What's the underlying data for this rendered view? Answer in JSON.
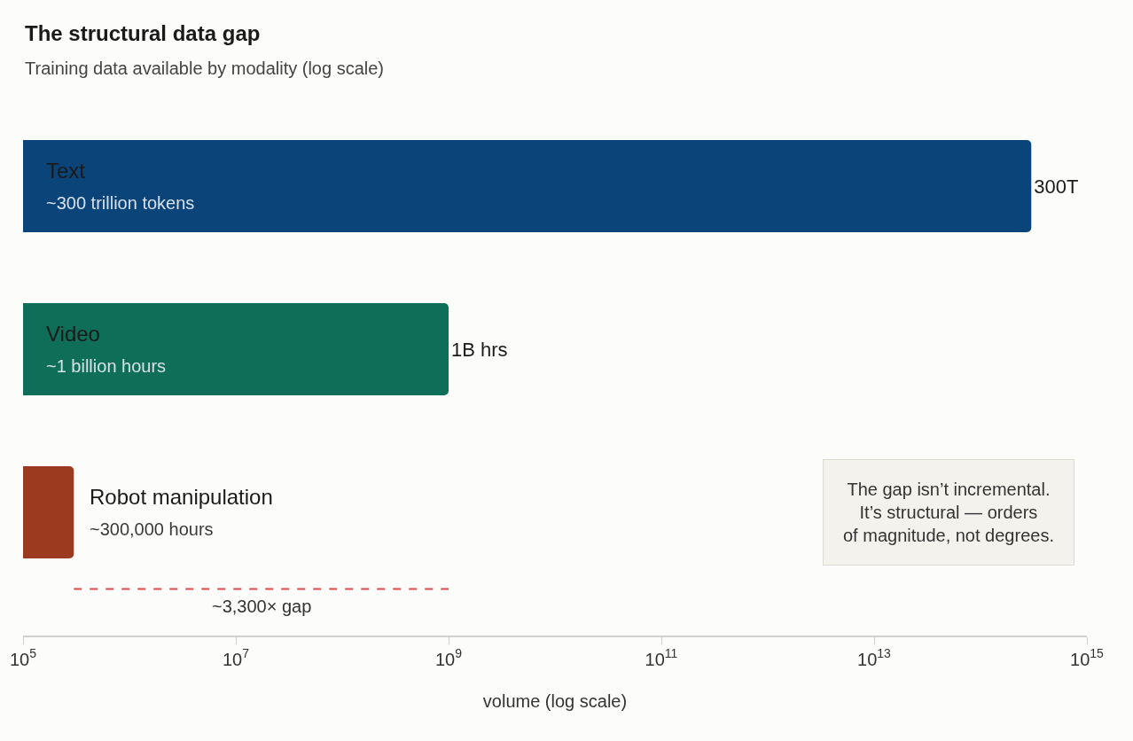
{
  "chart_data": {
    "type": "bar",
    "orientation": "horizontal",
    "title": "The structural data gap",
    "subtitle": "Training data available by modality (log scale)",
    "xlabel": "volume (log scale)",
    "categories": [
      "Text",
      "Video",
      "Robot manipulation"
    ],
    "values": [
      300000000000000.0,
      1000000000.0,
      300000.0
    ],
    "colors": [
      "#0b4479",
      "#0f6e57",
      "#9b3a1f"
    ],
    "value_labels": [
      "300T",
      "1B hrs",
      null
    ],
    "log": "x",
    "xlim": [
      100000.0,
      1000000000000000.0
    ],
    "xticks": [
      {
        "value": 100000.0,
        "label": "10$^{5}$"
      },
      {
        "value": 10000000.0,
        "label": "10$^{7}$"
      },
      {
        "value": 1000000000.0,
        "label": "10$^{9}$"
      },
      {
        "value": 100000000000.0,
        "label": "10$^{11}$"
      },
      {
        "value": 10000000000000.0,
        "label": "10$^{13}$"
      },
      {
        "value": 1000000000000000.0,
        "label": "10$^{15}$"
      }
    ],
    "tick_labels": "x",
    "legend": false,
    "annotations": [
      "~300 trillion tokens",
      "~1 billion hours",
      "~300,000 hours",
      "~3,300× gap",
      "The gap isn’t incremental.\nIt’s structural — orders\nof magnitude, not degrees."
    ]
  }
}
